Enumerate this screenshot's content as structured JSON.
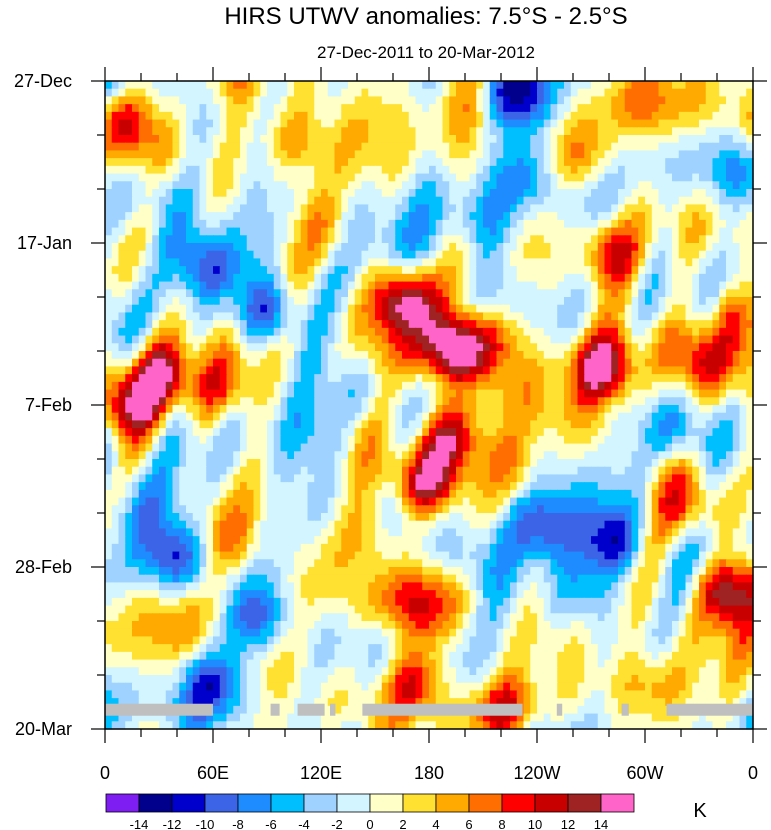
{
  "chart_data": {
    "type": "heatmap",
    "title": "HIRS UTWV anomalies: 7.5°S - 2.5°S",
    "subtitle": "27-Dec-2011 to 20-Mar-2012",
    "x_ticks": [
      "0",
      "60E",
      "120E",
      "180",
      "120W",
      "60W",
      "0"
    ],
    "x_tick_values": [
      0,
      60,
      120,
      180,
      240,
      300,
      360
    ],
    "xlim": [
      0,
      360
    ],
    "y_ticks": [
      "27-Dec",
      "17-Jan",
      "7-Feb",
      "28-Feb",
      "20-Mar"
    ],
    "y_tick_days": [
      0,
      21,
      42,
      63,
      84
    ],
    "ylim": [
      0,
      84
    ],
    "colorbar": {
      "unit": "K",
      "levels": [
        "-14",
        "-12",
        "-10",
        "-8",
        "-6",
        "-4",
        "-2",
        "0",
        "2",
        "4",
        "6",
        "8",
        "10",
        "12",
        "14"
      ],
      "colors": [
        "#7f1ef2",
        "#00008c",
        "#0000cd",
        "#3c64e6",
        "#1e8cff",
        "#00bfff",
        "#a0d2ff",
        "#d2f5ff",
        "#ffffc8",
        "#ffe132",
        "#ffaa00",
        "#ff6e00",
        "#ff0000",
        "#c80000",
        "#a02323",
        "#ff64c8"
      ]
    },
    "features": [
      {
        "lon": 10,
        "day": 5,
        "value": 10
      },
      {
        "lon": 30,
        "day": 14,
        "value": -5
      },
      {
        "lon": 56,
        "day": 24,
        "value": -7
      },
      {
        "lon": 90,
        "day": 30,
        "value": -12
      },
      {
        "lon": 32,
        "day": 38,
        "value": 9
      },
      {
        "lon": 10,
        "day": 42,
        "value": 10
      },
      {
        "lon": 65,
        "day": 40,
        "value": 7
      },
      {
        "lon": 20,
        "day": 56,
        "value": -5
      },
      {
        "lon": 40,
        "day": 62,
        "value": -9
      },
      {
        "lon": 70,
        "day": 60,
        "value": 6
      },
      {
        "lon": 85,
        "day": 70,
        "value": -9
      },
      {
        "lon": 60,
        "day": 78,
        "value": -6
      },
      {
        "lon": 115,
        "day": 46,
        "value": -4
      },
      {
        "lon": 100,
        "day": 8,
        "value": 6
      },
      {
        "lon": 165,
        "day": 28,
        "value": 14
      },
      {
        "lon": 195,
        "day": 35,
        "value": 15
      },
      {
        "lon": 215,
        "day": 33,
        "value": 8
      },
      {
        "lon": 190,
        "day": 46,
        "value": 13
      },
      {
        "lon": 175,
        "day": 52,
        "value": 15
      },
      {
        "lon": 150,
        "day": 58,
        "value": 7
      },
      {
        "lon": 170,
        "day": 68,
        "value": 6
      },
      {
        "lon": 172,
        "day": 78,
        "value": 11
      },
      {
        "lon": 225,
        "day": 50,
        "value": 6
      },
      {
        "lon": 235,
        "day": 76,
        "value": -3
      },
      {
        "lon": 220,
        "day": 82,
        "value": 10
      },
      {
        "lon": 245,
        "day": 58,
        "value": -8
      },
      {
        "lon": 280,
        "day": 60,
        "value": -10
      },
      {
        "lon": 265,
        "day": 66,
        "value": -7
      },
      {
        "lon": 260,
        "day": 10,
        "value": 5
      },
      {
        "lon": 305,
        "day": 4,
        "value": 5
      },
      {
        "lon": 277,
        "day": 37,
        "value": 15
      },
      {
        "lon": 280,
        "day": 22,
        "value": 10
      },
      {
        "lon": 320,
        "day": 46,
        "value": -6
      },
      {
        "lon": 330,
        "day": 36,
        "value": 8
      },
      {
        "lon": 350,
        "day": 30,
        "value": 9
      },
      {
        "lon": 345,
        "day": 66,
        "value": 14
      },
      {
        "lon": 330,
        "day": 56,
        "value": 7
      },
      {
        "lon": 355,
        "day": 12,
        "value": -5
      },
      {
        "lon": 230,
        "day": 2,
        "value": -12
      },
      {
        "lon": 240,
        "day": 12,
        "value": -6
      },
      {
        "lon": 250,
        "day": 6,
        "value": -4
      },
      {
        "lon": 300,
        "day": 78,
        "value": 5
      },
      {
        "lon": 125,
        "day": 20,
        "value": 5
      },
      {
        "lon": 205,
        "day": 18,
        "value": -6
      },
      {
        "lon": 140,
        "day": 40,
        "value": -4
      },
      {
        "lon": 200,
        "day": 62,
        "value": -5
      }
    ],
    "missing_bands": [
      {
        "day": 81.5,
        "lon_ranges": [
          [
            0,
            60
          ],
          [
            92,
            97
          ],
          [
            107,
            122
          ],
          [
            125,
            128
          ],
          [
            143,
            232
          ],
          [
            251,
            254
          ],
          [
            287,
            291
          ],
          [
            312,
            360
          ]
        ]
      }
    ]
  }
}
